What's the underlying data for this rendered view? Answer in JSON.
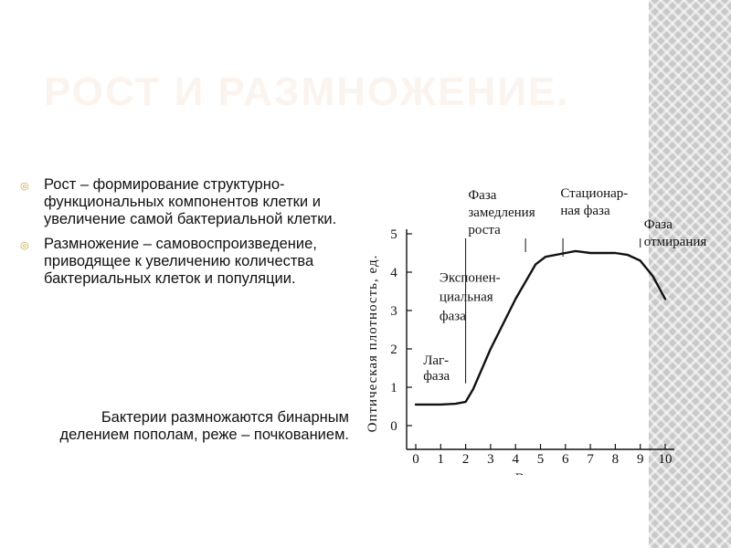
{
  "slide": {
    "title": "РОСТ И РАЗМНОЖЕНИЕ.",
    "bullets": [
      " Рост – формирование структурно-функциональных компонентов клетки и увеличение самой бактериальной клетки.",
      " Размножение – самовоспроизведение, приводящее к увеличению количества бактериальных клеток и популяции."
    ],
    "note": "Бактерии размножаются бинарным делением пополам, реже – почкованием.",
    "colors": {
      "title": "#fbf3ee",
      "bullet": "#c9a234",
      "stripe": "#c9c9c9"
    },
    "bullet_icon": "double-circle-bullet-icon"
  },
  "chart_data": {
    "type": "line",
    "title": "",
    "xlabel": "Время, ч",
    "ylabel": "Оптическая плотность, ед.",
    "xlim": [
      0,
      10
    ],
    "ylim": [
      0,
      5
    ],
    "x_ticks": [
      "0",
      "1",
      "2",
      "3",
      "4",
      "5",
      "6",
      "7",
      "8",
      "9",
      "10"
    ],
    "y_ticks": [
      "0",
      "1",
      "2",
      "3",
      "4",
      "5"
    ],
    "grid": false,
    "series": [
      {
        "x": [
          0,
          1,
          1.6,
          2,
          2.3,
          3,
          4,
          4.8,
          5.2,
          6,
          6.4,
          7,
          7.5,
          8,
          8.5,
          9,
          9.5,
          10
        ],
        "y": [
          0.55,
          0.55,
          0.57,
          0.62,
          0.95,
          2.0,
          3.3,
          4.2,
          4.4,
          4.5,
          4.55,
          4.5,
          4.5,
          4.5,
          4.45,
          4.3,
          3.9,
          3.3
        ]
      }
    ],
    "phase_boundaries": [
      2,
      4.4,
      5.9,
      9
    ],
    "phases": [
      {
        "label_lines": [
          "Лаг-",
          "фаза"
        ]
      },
      {
        "label_lines": [
          "Экспонен-",
          "циальная",
          "фаза"
        ]
      },
      {
        "label_lines": [
          "Фаза",
          "замедления",
          "роста"
        ]
      },
      {
        "label_lines": [
          "Стационар-",
          "ная фаза"
        ]
      },
      {
        "label_lines": [
          "Фаза",
          "отмирания"
        ]
      }
    ]
  }
}
